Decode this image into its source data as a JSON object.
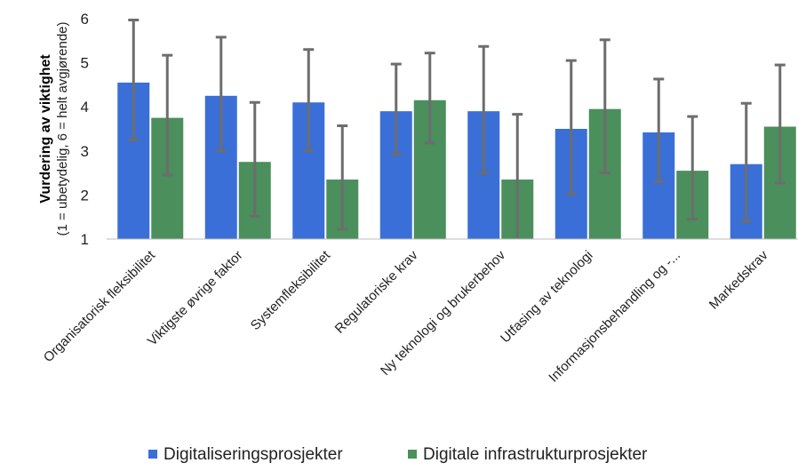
{
  "chart_data": {
    "type": "bar",
    "categories": [
      "Organisatorisk fleksibilitet",
      "Viktigste øvrige faktor",
      "Systemfleksibilitet",
      "Regulatoriske krav",
      "Ny teknologi og brukerbehov",
      "Utfasing av teknologi",
      "Informasjonsbehandling og -...",
      "Markedskrav"
    ],
    "series": [
      {
        "name": "Digitaliseringsprosjekter",
        "color": "#3a6fd8",
        "values": [
          4.55,
          4.25,
          4.1,
          3.9,
          3.9,
          3.5,
          3.42,
          2.7
        ],
        "error_low": [
          3.25,
          3.0,
          3.0,
          2.92,
          2.5,
          2.02,
          2.3,
          1.4
        ],
        "error_high": [
          5.97,
          5.58,
          5.3,
          4.97,
          5.37,
          5.05,
          4.63,
          4.08
        ]
      },
      {
        "name": "Digitale infrastrukturprosjekter",
        "color": "#4a8f5c",
        "values": [
          3.75,
          2.75,
          2.35,
          4.15,
          2.35,
          3.95,
          2.55,
          3.55
        ],
        "error_low": [
          2.45,
          1.52,
          1.22,
          3.18,
          0.95,
          2.5,
          1.45,
          2.27
        ],
        "error_high": [
          5.17,
          4.1,
          3.57,
          5.22,
          3.83,
          5.52,
          3.78,
          4.95
        ]
      }
    ],
    "ylabel_main": "Vurdering av viktighet",
    "ylabel_sub": "(1 = ubetydelig, 6 = helt avgjørende)",
    "ylim": [
      1,
      6
    ],
    "yticks": [
      "1",
      "2",
      "3",
      "4",
      "5",
      "6"
    ],
    "error_bar_color": "#6d6d6d",
    "grid": false,
    "legend": "bottom"
  }
}
